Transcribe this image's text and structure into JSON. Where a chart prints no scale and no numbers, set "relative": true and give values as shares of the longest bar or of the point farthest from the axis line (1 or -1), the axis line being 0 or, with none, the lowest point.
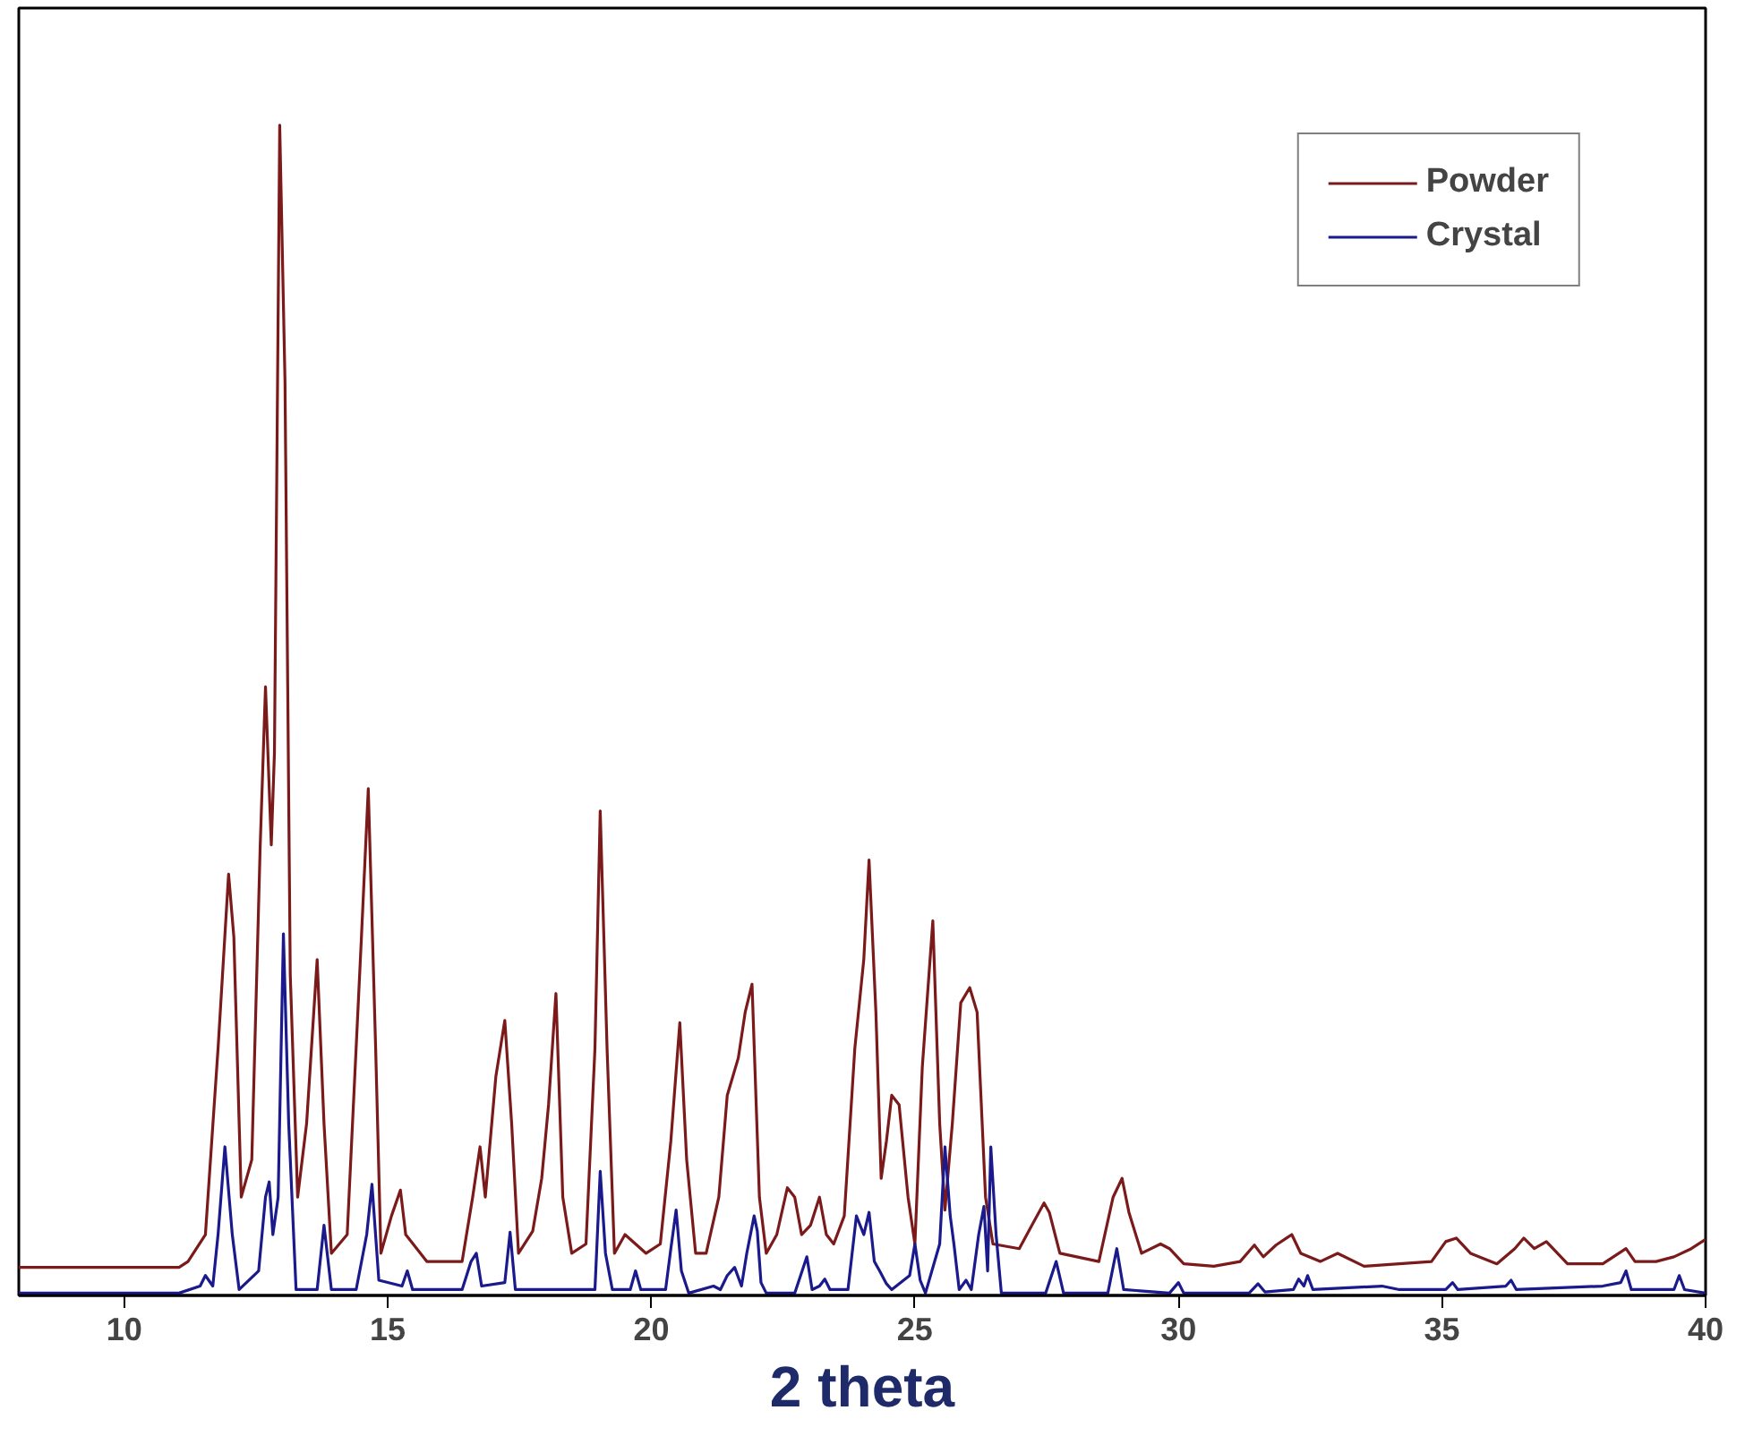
{
  "chart_data": {
    "type": "line",
    "relative": true,
    "xlabel": "2 theta",
    "xlim": [
      8,
      40
    ],
    "xticks": [
      10,
      15,
      20,
      25,
      30,
      35,
      40
    ],
    "tick_labels": "x",
    "grid": false,
    "legend": "top right",
    "line_style": "solid",
    "series": [
      {
        "name": "Powder",
        "color": "#7b1a1a",
        "x": [
          8.0,
          11.04,
          11.21,
          11.54,
          11.78,
          11.98,
          12.08,
          12.22,
          12.42,
          12.58,
          12.68,
          12.79,
          12.85,
          12.95,
          13.05,
          13.15,
          13.29,
          13.46,
          13.66,
          13.79,
          13.93,
          14.23,
          14.5,
          14.63,
          14.77,
          14.87,
          15.07,
          15.24,
          15.34,
          15.74,
          16.41,
          16.61,
          16.75,
          16.85,
          17.05,
          17.22,
          17.35,
          17.48,
          17.75,
          17.92,
          18.05,
          18.19,
          18.32,
          18.49,
          18.76,
          18.93,
          19.03,
          19.16,
          19.3,
          19.5,
          19.7,
          19.9,
          20.17,
          20.37,
          20.54,
          20.67,
          20.84,
          21.04,
          21.28,
          21.44,
          21.65,
          21.78,
          21.91,
          22.05,
          22.18,
          22.38,
          22.58,
          22.72,
          22.85,
          23.02,
          23.19,
          23.32,
          23.46,
          23.66,
          23.86,
          24.03,
          24.13,
          24.26,
          24.36,
          24.46,
          24.56,
          24.7,
          24.87,
          25.0,
          25.14,
          25.34,
          25.47,
          25.57,
          25.71,
          25.87,
          26.04,
          26.18,
          26.34,
          26.48,
          26.98,
          27.22,
          27.45,
          27.55,
          27.75,
          28.49,
          28.76,
          28.93,
          29.06,
          29.3,
          29.66,
          29.83,
          30.1,
          30.67,
          31.17,
          31.44,
          31.61,
          31.85,
          32.05,
          32.15,
          32.32,
          32.69,
          33.02,
          33.52,
          34.19,
          34.8,
          35.07,
          35.27,
          35.54,
          36.04,
          36.38,
          36.55,
          36.75,
          36.98,
          37.38,
          38.05,
          38.49,
          38.66,
          39.06,
          39.4,
          39.73,
          40.0
        ],
        "values": [
          0.024,
          0.024,
          0.029,
          0.052,
          0.211,
          0.36,
          0.306,
          0.084,
          0.116,
          0.385,
          0.52,
          0.385,
          0.464,
          1.0,
          0.781,
          0.274,
          0.084,
          0.147,
          0.287,
          0.147,
          0.036,
          0.052,
          0.306,
          0.433,
          0.211,
          0.036,
          0.068,
          0.09,
          0.052,
          0.029,
          0.029,
          0.084,
          0.127,
          0.084,
          0.187,
          0.235,
          0.147,
          0.036,
          0.055,
          0.1,
          0.163,
          0.258,
          0.084,
          0.036,
          0.044,
          0.211,
          0.414,
          0.211,
          0.036,
          0.052,
          0.044,
          0.036,
          0.044,
          0.132,
          0.233,
          0.116,
          0.036,
          0.036,
          0.084,
          0.171,
          0.203,
          0.242,
          0.266,
          0.084,
          0.036,
          0.052,
          0.092,
          0.084,
          0.052,
          0.06,
          0.084,
          0.052,
          0.044,
          0.068,
          0.211,
          0.287,
          0.372,
          0.242,
          0.1,
          0.132,
          0.171,
          0.163,
          0.084,
          0.044,
          0.195,
          0.32,
          0.147,
          0.073,
          0.147,
          0.25,
          0.263,
          0.242,
          0.084,
          0.044,
          0.04,
          0.06,
          0.079,
          0.071,
          0.036,
          0.029,
          0.084,
          0.1,
          0.071,
          0.036,
          0.044,
          0.04,
          0.027,
          0.025,
          0.029,
          0.043,
          0.033,
          0.043,
          0.049,
          0.052,
          0.036,
          0.029,
          0.036,
          0.025,
          0.027,
          0.029,
          0.046,
          0.049,
          0.036,
          0.027,
          0.04,
          0.049,
          0.04,
          0.046,
          0.027,
          0.027,
          0.04,
          0.029,
          0.029,
          0.033,
          0.04,
          0.048
        ]
      },
      {
        "name": "Crystal",
        "color": "#1a1a8c",
        "x": [
          8.0,
          11.04,
          11.44,
          11.54,
          11.68,
          11.78,
          11.91,
          12.05,
          12.18,
          12.55,
          12.68,
          12.75,
          12.82,
          12.92,
          13.02,
          13.12,
          13.26,
          13.66,
          13.79,
          13.93,
          14.4,
          14.6,
          14.7,
          14.83,
          15.27,
          15.37,
          15.47,
          16.41,
          16.58,
          16.68,
          16.78,
          17.22,
          17.32,
          17.42,
          18.93,
          19.03,
          19.13,
          19.26,
          19.6,
          19.7,
          19.8,
          20.27,
          20.37,
          20.47,
          20.57,
          20.71,
          21.18,
          21.31,
          21.44,
          21.58,
          21.71,
          21.81,
          21.95,
          22.01,
          22.08,
          22.18,
          22.72,
          22.95,
          23.05,
          23.19,
          23.29,
          23.39,
          23.73,
          23.89,
          24.03,
          24.13,
          24.23,
          24.33,
          24.46,
          24.56,
          24.9,
          25.0,
          25.1,
          25.2,
          25.47,
          25.57,
          25.67,
          25.74,
          25.84,
          25.97,
          26.07,
          26.21,
          26.31,
          26.38,
          26.44,
          26.54,
          26.64,
          27.48,
          27.68,
          27.82,
          28.66,
          28.83,
          28.96,
          29.83,
          30.0,
          30.1,
          31.34,
          31.51,
          31.64,
          32.18,
          32.28,
          32.38,
          32.45,
          32.55,
          33.86,
          34.19,
          35.07,
          35.2,
          35.3,
          36.21,
          36.31,
          36.41,
          38.05,
          38.39,
          38.49,
          38.59,
          39.4,
          39.5,
          39.6,
          40.0
        ],
        "values": [
          0.002,
          0.002,
          0.008,
          0.017,
          0.008,
          0.052,
          0.127,
          0.052,
          0.005,
          0.021,
          0.084,
          0.097,
          0.052,
          0.084,
          0.309,
          0.147,
          0.005,
          0.005,
          0.06,
          0.005,
          0.005,
          0.052,
          0.095,
          0.013,
          0.008,
          0.021,
          0.005,
          0.005,
          0.029,
          0.036,
          0.008,
          0.011,
          0.054,
          0.005,
          0.005,
          0.106,
          0.036,
          0.005,
          0.005,
          0.021,
          0.005,
          0.005,
          0.04,
          0.073,
          0.021,
          0.002,
          0.008,
          0.005,
          0.017,
          0.024,
          0.008,
          0.036,
          0.068,
          0.055,
          0.011,
          0.002,
          0.002,
          0.033,
          0.005,
          0.008,
          0.014,
          0.005,
          0.005,
          0.068,
          0.052,
          0.071,
          0.029,
          0.021,
          0.01,
          0.005,
          0.017,
          0.044,
          0.013,
          0.002,
          0.044,
          0.127,
          0.068,
          0.044,
          0.005,
          0.013,
          0.005,
          0.052,
          0.076,
          0.021,
          0.127,
          0.052,
          0.002,
          0.002,
          0.029,
          0.002,
          0.002,
          0.04,
          0.005,
          0.002,
          0.011,
          0.002,
          0.002,
          0.01,
          0.003,
          0.005,
          0.014,
          0.008,
          0.017,
          0.005,
          0.008,
          0.005,
          0.005,
          0.011,
          0.005,
          0.008,
          0.013,
          0.005,
          0.008,
          0.011,
          0.021,
          0.005,
          0.005,
          0.017,
          0.005,
          0.002
        ]
      }
    ]
  }
}
